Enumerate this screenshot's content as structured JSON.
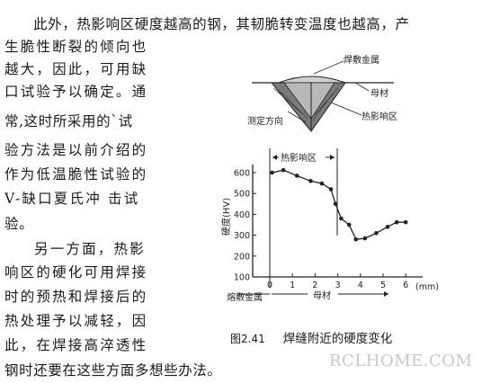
{
  "text": {
    "line1": "此外，热影响区硬度越高的钢，其韧脆转变温度也越高，产",
    "line2": "生脆性断裂的倾向也",
    "line3": "越大，因此，可用缺",
    "line4": "口试验予以确定。通",
    "line5": "常,这时所采用的`试",
    "line6": "验方法是以前介绍的",
    "line7": "作为低温脆性试验的",
    "line8": "V-缺口夏氏冲 击试",
    "line9": "验。",
    "line10": "另一方面，热影",
    "line11": "响区的硬化可用焊接",
    "line12": "时的预热和焊接后的",
    "line13": "热处理予以减轻，因",
    "line14": "此，在焊接高淬透性",
    "line15": "钢时还要在这些方面多想些办法。"
  },
  "diagram": {
    "weld_metal": "焊敷金属",
    "base_metal": "母材",
    "measure_dir": "测定方向",
    "haz": "热影响区"
  },
  "chart_data": {
    "type": "line",
    "title": "",
    "ylabel": "硬度(HV)",
    "xlabel": "(mm)",
    "x_ticks": [
      "0",
      "1",
      "2",
      "3",
      "4",
      "5",
      "6"
    ],
    "y_ticks": [
      "100",
      "200",
      "300",
      "400",
      "500",
      "600"
    ],
    "xlim": [
      0,
      6.5
    ],
    "ylim": [
      100,
      650
    ],
    "haz_label": "热影响区",
    "haz_range": [
      0,
      3
    ],
    "weld_metal_label": "熔敷金属",
    "base_metal_label": "母材",
    "series": [
      {
        "x": [
          0.1,
          0.6,
          1.2,
          1.8,
          2.3,
          2.7,
          2.9,
          3.15,
          3.5,
          3.8,
          4.2,
          4.7,
          5.2,
          5.6,
          6.0
        ],
        "y": [
          600,
          612,
          585,
          560,
          548,
          520,
          450,
          380,
          350,
          280,
          285,
          310,
          340,
          362,
          362
        ]
      }
    ]
  },
  "caption": {
    "number": "图2.41",
    "title": "焊缝附近的硬度变化"
  },
  "watermark": "RCLHOME.COM"
}
